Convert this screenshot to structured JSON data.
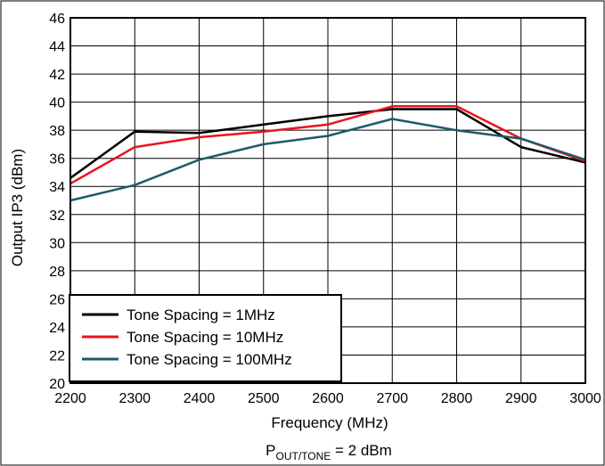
{
  "chart_data": {
    "type": "line",
    "xlabel": "Frequency (MHz)",
    "ylabel": "Output IP3 (dBm)",
    "xlim": [
      2200,
      3000
    ],
    "ylim": [
      20,
      46
    ],
    "x_ticks": [
      2200,
      2300,
      2400,
      2500,
      2600,
      2700,
      2800,
      2900,
      3000
    ],
    "y_ticks": [
      20,
      22,
      24,
      26,
      28,
      30,
      32,
      34,
      36,
      38,
      40,
      42,
      44,
      46
    ],
    "grid": true,
    "legend_position": "bottom-left",
    "x": [
      2200,
      2300,
      2400,
      2500,
      2600,
      2700,
      2800,
      2900,
      3000
    ],
    "series": [
      {
        "name": "Tone Spacing = 1MHz",
        "color": "#000000",
        "values": [
          34.6,
          37.9,
          37.8,
          38.4,
          39.0,
          39.5,
          39.5,
          36.8,
          35.7
        ]
      },
      {
        "name": "Tone Spacing = 10MHz",
        "color": "#e8141e",
        "values": [
          34.2,
          36.8,
          37.5,
          37.9,
          38.4,
          39.7,
          39.7,
          37.4,
          35.8
        ]
      },
      {
        "name": "Tone Spacing = 100MHz",
        "color": "#1f5a6a",
        "values": [
          33.0,
          34.1,
          35.9,
          37.0,
          37.6,
          38.8,
          38.0,
          37.4,
          35.9
        ]
      }
    ],
    "condition": {
      "prefix": "P",
      "subscript": "OUT/TONE",
      "suffix": " = 2 dBm"
    }
  }
}
